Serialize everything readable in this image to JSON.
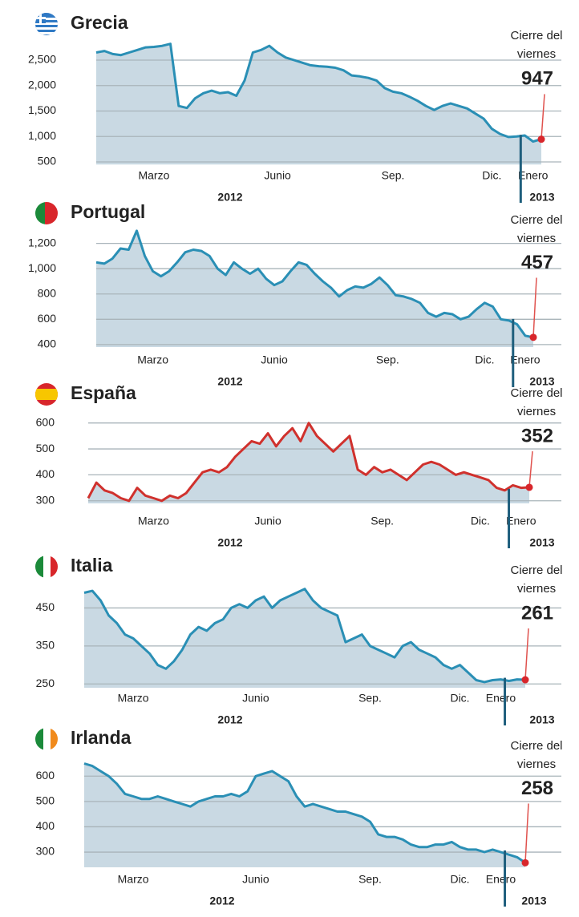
{
  "chart_data": [
    {
      "type": "area",
      "title": "Grecia",
      "color": "#2a8fb5",
      "categories": [
        null,
        null,
        null,
        null,
        null,
        null,
        null,
        "Marzo",
        null,
        null,
        null,
        null,
        null,
        null,
        null,
        null,
        null,
        null,
        null,
        null,
        null,
        null,
        "Junio",
        null,
        null,
        null,
        null,
        null,
        null,
        null,
        null,
        null,
        null,
        null,
        null,
        null,
        "Sep.",
        null,
        null,
        null,
        null,
        null,
        null,
        null,
        null,
        null,
        null,
        null,
        "Dic.",
        null,
        null,
        null,
        null,
        "Enero",
        null
      ],
      "values": [
        2650,
        2680,
        2620,
        2600,
        2650,
        2700,
        2750,
        2760,
        2780,
        2820,
        1600,
        1560,
        1750,
        1850,
        1900,
        1850,
        1870,
        1800,
        2100,
        2650,
        2700,
        2780,
        2650,
        2550,
        2500,
        2450,
        2400,
        2380,
        2370,
        2350,
        2300,
        2200,
        2180,
        2150,
        2100,
        1950,
        1880,
        1850,
        1780,
        1700,
        1600,
        1520,
        1600,
        1650,
        1600,
        1550,
        1450,
        1350,
        1150,
        1050,
        990,
        1000,
        1020,
        900,
        947
      ],
      "ylim": [
        450,
        2900
      ],
      "yticks": [
        500,
        {
          "value": 1000,
          "label": "1,000"
        },
        {
          "value": 1500,
          "label": "1,500"
        },
        {
          "value": 2000,
          "label": "2,000"
        },
        {
          "value": 2500,
          "label": "2,500"
        }
      ],
      "grid": true,
      "year_labels": [
        "2012",
        "2013"
      ],
      "annotation": "Cierre del viernes"
    },
    {
      "type": "area",
      "title": "Portugal",
      "color": "#2a8fb5",
      "categories": [
        null,
        null,
        null,
        null,
        null,
        null,
        null,
        "Marzo",
        null,
        null,
        null,
        null,
        null,
        null,
        null,
        null,
        null,
        null,
        null,
        null,
        null,
        null,
        "Junio",
        null,
        null,
        null,
        null,
        null,
        null,
        null,
        null,
        null,
        null,
        null,
        null,
        null,
        "Sep.",
        null,
        null,
        null,
        null,
        null,
        null,
        null,
        null,
        null,
        null,
        null,
        "Dic.",
        null,
        null,
        null,
        null,
        "Enero",
        null
      ],
      "values": [
        1050,
        1040,
        1080,
        1160,
        1150,
        1300,
        1100,
        980,
        940,
        980,
        1050,
        1130,
        1150,
        1140,
        1100,
        1000,
        950,
        1050,
        1000,
        960,
        1000,
        920,
        870,
        900,
        980,
        1050,
        1030,
        960,
        900,
        850,
        780,
        830,
        860,
        850,
        880,
        930,
        870,
        790,
        780,
        760,
        730,
        650,
        620,
        650,
        640,
        600,
        620,
        680,
        730,
        700,
        600,
        590,
        560,
        470,
        457
      ],
      "ylim": [
        380,
        1350
      ],
      "yticks": [
        400,
        600,
        800,
        {
          "value": 1000,
          "label": "1,000"
        },
        {
          "value": 1200,
          "label": "1,200"
        }
      ],
      "grid": true,
      "year_labels": [
        "2012",
        "2013"
      ],
      "annotation": "Cierre del viernes"
    },
    {
      "type": "area",
      "title": "España",
      "color": "#d0312d",
      "categories": [
        null,
        null,
        null,
        null,
        null,
        null,
        null,
        null,
        "Marzo",
        null,
        null,
        null,
        null,
        null,
        null,
        null,
        null,
        null,
        null,
        null,
        null,
        null,
        "Junio",
        null,
        null,
        null,
        null,
        null,
        null,
        null,
        null,
        null,
        null,
        null,
        null,
        null,
        "Sep.",
        null,
        null,
        null,
        null,
        null,
        null,
        null,
        null,
        null,
        null,
        null,
        "Dic.",
        null,
        null,
        null,
        null,
        "Enero",
        null
      ],
      "values": [
        310,
        370,
        340,
        330,
        310,
        300,
        350,
        320,
        310,
        300,
        320,
        310,
        330,
        370,
        410,
        420,
        410,
        430,
        470,
        500,
        530,
        520,
        560,
        510,
        550,
        580,
        530,
        600,
        550,
        520,
        490,
        520,
        550,
        420,
        400,
        430,
        410,
        420,
        400,
        380,
        410,
        440,
        450,
        440,
        420,
        400,
        410,
        400,
        390,
        380,
        350,
        340,
        360,
        350,
        352
      ],
      "ylim": [
        290,
        630
      ],
      "yticks": [
        300,
        400,
        500,
        600
      ],
      "grid": true,
      "year_labels": [
        "2012",
        "2013"
      ],
      "annotation": "Cierre del viernes"
    },
    {
      "type": "area",
      "title": "Italia",
      "color": "#2a8fb5",
      "categories": [
        null,
        null,
        null,
        null,
        null,
        null,
        "Marzo",
        null,
        null,
        null,
        null,
        null,
        null,
        null,
        null,
        null,
        null,
        null,
        null,
        null,
        null,
        "Junio",
        null,
        null,
        null,
        null,
        null,
        null,
        null,
        null,
        null,
        null,
        null,
        null,
        null,
        "Sep.",
        null,
        null,
        null,
        null,
        null,
        null,
        null,
        null,
        null,
        null,
        "Dic.",
        null,
        null,
        null,
        null,
        "Enero",
        null,
        null,
        null
      ],
      "values": [
        490,
        495,
        470,
        430,
        410,
        380,
        370,
        350,
        330,
        300,
        290,
        310,
        340,
        380,
        400,
        390,
        410,
        420,
        450,
        460,
        450,
        470,
        480,
        450,
        470,
        480,
        490,
        500,
        470,
        450,
        440,
        430,
        360,
        370,
        380,
        350,
        340,
        330,
        320,
        350,
        360,
        340,
        330,
        320,
        300,
        290,
        300,
        280,
        260,
        255,
        260,
        262,
        258,
        262,
        261
      ],
      "ylim": [
        240,
        510
      ],
      "yticks": [
        250,
        350,
        450
      ],
      "grid": true,
      "year_labels": [
        "2012",
        "2013"
      ],
      "annotation": "Cierre del viernes"
    },
    {
      "type": "area",
      "title": "Irlanda",
      "color": "#2a8fb5",
      "categories": [
        null,
        null,
        null,
        null,
        null,
        null,
        "Marzo",
        null,
        null,
        null,
        null,
        null,
        null,
        null,
        null,
        null,
        null,
        null,
        null,
        null,
        null,
        "Junio",
        null,
        null,
        null,
        null,
        null,
        null,
        null,
        null,
        null,
        null,
        null,
        null,
        null,
        "Sep.",
        null,
        null,
        null,
        null,
        null,
        null,
        null,
        null,
        null,
        null,
        "Dic.",
        null,
        null,
        null,
        null,
        "Enero",
        null,
        null,
        null
      ],
      "values": [
        650,
        640,
        620,
        600,
        570,
        530,
        520,
        510,
        510,
        520,
        510,
        500,
        490,
        480,
        500,
        510,
        520,
        520,
        530,
        520,
        540,
        600,
        610,
        620,
        600,
        580,
        520,
        480,
        490,
        480,
        470,
        460,
        460,
        450,
        440,
        420,
        370,
        360,
        360,
        350,
        330,
        320,
        320,
        330,
        330,
        340,
        320,
        310,
        310,
        300,
        310,
        300,
        290,
        280,
        258
      ],
      "ylim": [
        240,
        680
      ],
      "yticks": [
        300,
        400,
        500,
        600
      ],
      "grid": true,
      "year_labels": [
        "2012",
        "2013"
      ],
      "annotation": "Cierre del viernes"
    }
  ]
}
